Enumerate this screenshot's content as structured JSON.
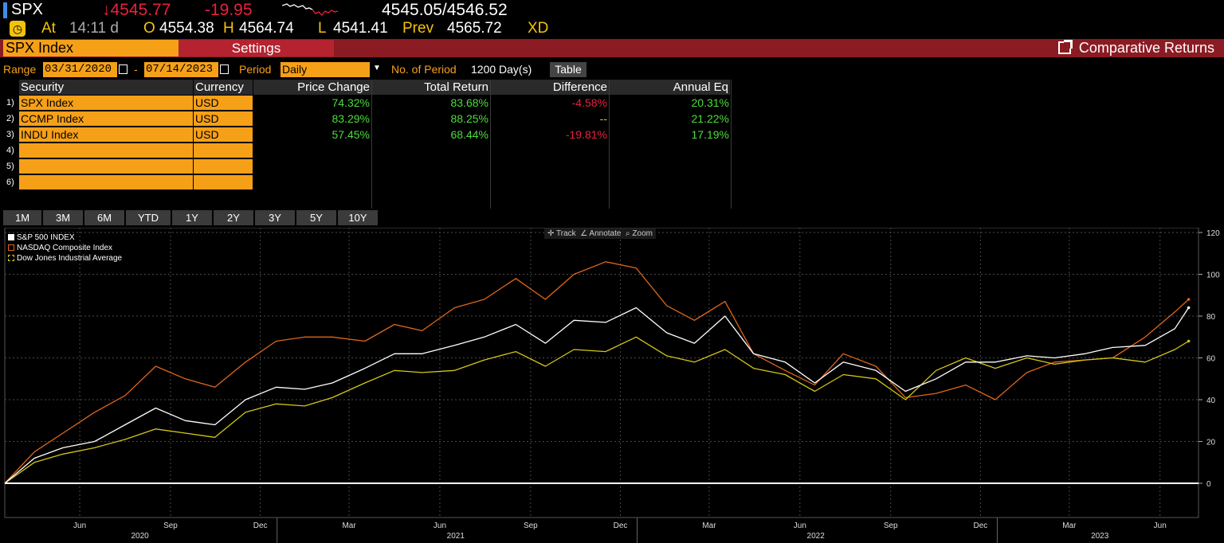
{
  "ticker": {
    "symbol": "SPX",
    "last": "↓4545.77",
    "change": "-19.95",
    "bid_ask": "4545.05/4546.52",
    "at_label": "At",
    "time": "14:11 d",
    "open_label": "O",
    "open": "4554.38",
    "high_label": "H",
    "high": "4564.74",
    "low_label": "L",
    "low": "4541.41",
    "prev_label": "Prev",
    "prev": "4565.72",
    "xd": "XD"
  },
  "titlebar": {
    "security": "SPX Index",
    "settings": "Settings",
    "function": "Comparative Returns"
  },
  "range": {
    "label": "Range",
    "start": "03/31/2020",
    "dash": "-",
    "end": "07/14/2023",
    "period_label": "Period",
    "period": "Daily",
    "nperiod_label": "No. of Period",
    "nperiod": "1200 Day(s)",
    "table_button": "Table"
  },
  "table": {
    "headers": [
      "Security",
      "Currency",
      "Price Change",
      "Total Return",
      "Difference",
      "Annual Eq"
    ],
    "rows": [
      {
        "n": "1)",
        "security": "SPX Index",
        "currency": "USD",
        "price_change": "74.32%",
        "total_return": "83.68%",
        "difference": "-4.58%",
        "annual_eq": "20.31%"
      },
      {
        "n": "2)",
        "security": "CCMP Index",
        "currency": "USD",
        "price_change": "83.29%",
        "total_return": "88.25%",
        "difference": "--",
        "annual_eq": "21.22%"
      },
      {
        "n": "3)",
        "security": "INDU Index",
        "currency": "USD",
        "price_change": "57.45%",
        "total_return": "68.44%",
        "difference": "-19.81%",
        "annual_eq": "17.19%"
      },
      {
        "n": "4)",
        "security": "",
        "currency": "",
        "price_change": "",
        "total_return": "",
        "difference": "",
        "annual_eq": ""
      },
      {
        "n": "5)",
        "security": "",
        "currency": "",
        "price_change": "",
        "total_return": "",
        "difference": "",
        "annual_eq": ""
      },
      {
        "n": "6)",
        "security": "",
        "currency": "",
        "price_change": "",
        "total_return": "",
        "difference": "",
        "annual_eq": ""
      }
    ]
  },
  "periods": [
    "1M",
    "3M",
    "6M",
    "YTD",
    "1Y",
    "2Y",
    "3Y",
    "5Y",
    "10Y"
  ],
  "chart_tools": {
    "track": "Track",
    "annotate": "Annotate",
    "zoom": "Zoom"
  },
  "colors": {
    "spx": "#ffffff",
    "ccmp": "#e0661b",
    "indu": "#d4c616",
    "accent": "#f6a018",
    "up": "#4ddc3c",
    "down": "#e8213d"
  },
  "chart_data": {
    "type": "line",
    "legend_position": "top-left",
    "grid": true,
    "ylim": [
      -10,
      122
    ],
    "yticks": [
      0,
      20,
      40,
      60,
      80,
      100,
      120
    ],
    "x_month_labels": [
      "Jun",
      "Sep",
      "Dec",
      "Mar",
      "Jun",
      "Sep",
      "Dec",
      "Mar",
      "Jun",
      "Sep",
      "Dec",
      "Mar",
      "Jun"
    ],
    "x_year_labels": [
      "2020",
      "2021",
      "2022",
      "2023"
    ],
    "x": [
      "2020-03-31",
      "2020-04-30",
      "2020-05-29",
      "2020-06-30",
      "2020-07-31",
      "2020-08-31",
      "2020-09-30",
      "2020-10-30",
      "2020-11-30",
      "2020-12-31",
      "2021-01-29",
      "2021-02-26",
      "2021-03-31",
      "2021-04-30",
      "2021-05-28",
      "2021-06-30",
      "2021-07-30",
      "2021-08-31",
      "2021-09-30",
      "2021-10-29",
      "2021-11-30",
      "2021-12-31",
      "2022-01-31",
      "2022-02-28",
      "2022-03-31",
      "2022-04-29",
      "2022-05-31",
      "2022-06-30",
      "2022-07-29",
      "2022-08-31",
      "2022-09-30",
      "2022-10-31",
      "2022-11-30",
      "2022-12-30",
      "2023-01-31",
      "2023-02-28",
      "2023-03-31",
      "2023-04-28",
      "2023-05-31",
      "2023-06-30",
      "2023-07-14"
    ],
    "series": [
      {
        "name": "S&P 500 INDEX",
        "values": [
          0,
          12,
          17,
          20,
          28,
          36,
          30,
          28,
          40,
          46,
          45,
          48,
          55,
          62,
          62,
          66,
          70,
          76,
          67,
          78,
          77,
          84,
          72,
          67,
          80,
          62,
          58,
          48,
          58,
          54,
          44,
          50,
          58,
          58,
          61,
          60,
          62,
          65,
          66,
          74,
          84
        ]
      },
      {
        "name": "NASDAQ Composite Index",
        "values": [
          0,
          15,
          24,
          34,
          42,
          56,
          50,
          46,
          58,
          68,
          70,
          70,
          68,
          76,
          73,
          84,
          88,
          98,
          88,
          100,
          106,
          103,
          85,
          78,
          87,
          62,
          54,
          47,
          62,
          56,
          41,
          43,
          47,
          40,
          53,
          58,
          59,
          60,
          70,
          82,
          88
        ]
      },
      {
        "name": "Dow Jones Industrial Average",
        "values": [
          0,
          10,
          14,
          17,
          21,
          26,
          24,
          22,
          34,
          38,
          37,
          41,
          48,
          54,
          53,
          54,
          59,
          63,
          56,
          64,
          63,
          70,
          61,
          58,
          64,
          55,
          52,
          44,
          52,
          50,
          40,
          54,
          60,
          55,
          60,
          57,
          59,
          60,
          58,
          64,
          68
        ]
      }
    ]
  }
}
